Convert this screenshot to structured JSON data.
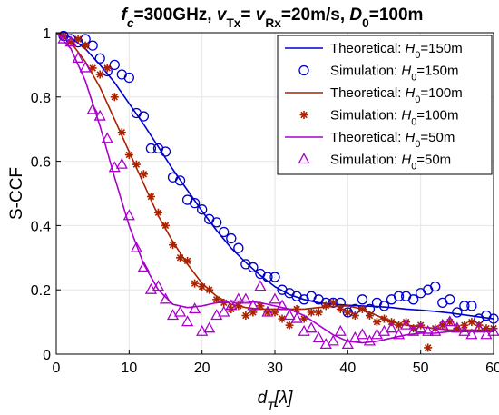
{
  "chart_data": {
    "type": "line",
    "title": {
      "segments": [
        {
          "t": "f",
          "italic": true
        },
        {
          "t": "c",
          "sub": true,
          "italic": true
        },
        {
          "t": "=300GHz,  "
        },
        {
          "t": "v",
          "italic": true
        },
        {
          "t": "Tx",
          "sub": true
        },
        {
          "t": "= "
        },
        {
          "t": "v",
          "italic": true
        },
        {
          "t": "Rx",
          "sub": true
        },
        {
          "t": "=20m/s,  "
        },
        {
          "t": "D",
          "italic": true
        },
        {
          "t": "0",
          "sub": true
        },
        {
          "t": "=100m"
        }
      ]
    },
    "xlabel": {
      "main": "d",
      "sub": "T",
      "suffix": "[λ]"
    },
    "ylabel": "S-CCF",
    "xlim": [
      0,
      60
    ],
    "ylim": [
      0,
      1
    ],
    "xticks": [
      "0",
      "10",
      "20",
      "30",
      "40",
      "50",
      "60"
    ],
    "yticks": [
      "0",
      "0.2",
      "0.4",
      "0.6",
      "0.8",
      "1"
    ],
    "grid": true,
    "legend_position": "top-right",
    "series": [
      {
        "name": "Theoretical:  H0=150m",
        "legend": {
          "prefix": "Theoretical:  ",
          "var": "H",
          "sub": "0",
          "suffix": "=150m"
        },
        "style": "line",
        "color": "#0000cc",
        "points": [
          [
            0,
            1.0
          ],
          [
            2,
            0.985
          ],
          [
            4,
            0.95
          ],
          [
            6,
            0.9
          ],
          [
            8,
            0.845
          ],
          [
            10,
            0.78
          ],
          [
            12,
            0.715
          ],
          [
            14,
            0.645
          ],
          [
            16,
            0.575
          ],
          [
            18,
            0.51
          ],
          [
            20,
            0.445
          ],
          [
            22,
            0.385
          ],
          [
            24,
            0.33
          ],
          [
            26,
            0.285
          ],
          [
            28,
            0.245
          ],
          [
            30,
            0.21
          ],
          [
            32,
            0.185
          ],
          [
            34,
            0.17
          ],
          [
            36,
            0.16
          ],
          [
            38,
            0.155
          ],
          [
            40,
            0.152
          ],
          [
            42,
            0.15
          ],
          [
            44,
            0.148
          ],
          [
            46,
            0.145
          ],
          [
            48,
            0.14
          ],
          [
            50,
            0.137
          ],
          [
            52,
            0.133
          ],
          [
            54,
            0.128
          ],
          [
            56,
            0.122
          ],
          [
            58,
            0.116
          ],
          [
            60,
            0.11
          ]
        ]
      },
      {
        "name": "Simulation:  H0=150m",
        "legend": {
          "prefix": "Simulation:  ",
          "var": "H",
          "sub": "0",
          "suffix": "=150m"
        },
        "style": "circle",
        "color": "#0000cc",
        "points": [
          [
            1,
            0.99
          ],
          [
            2,
            0.98
          ],
          [
            3,
            0.97
          ],
          [
            4,
            0.98
          ],
          [
            5,
            0.96
          ],
          [
            6,
            0.92
          ],
          [
            7,
            0.88
          ],
          [
            8,
            0.9
          ],
          [
            9,
            0.87
          ],
          [
            10,
            0.86
          ],
          [
            11,
            0.75
          ],
          [
            12,
            0.74
          ],
          [
            13,
            0.64
          ],
          [
            14,
            0.64
          ],
          [
            15,
            0.63
          ],
          [
            16,
            0.55
          ],
          [
            17,
            0.54
          ],
          [
            18,
            0.48
          ],
          [
            19,
            0.47
          ],
          [
            20,
            0.45
          ],
          [
            21,
            0.42
          ],
          [
            22,
            0.41
          ],
          [
            23,
            0.38
          ],
          [
            24,
            0.36
          ],
          [
            25,
            0.33
          ],
          [
            26,
            0.28
          ],
          [
            27,
            0.27
          ],
          [
            28,
            0.25
          ],
          [
            29,
            0.24
          ],
          [
            30,
            0.24
          ],
          [
            31,
            0.2
          ],
          [
            32,
            0.19
          ],
          [
            33,
            0.18
          ],
          [
            34,
            0.17
          ],
          [
            35,
            0.18
          ],
          [
            36,
            0.17
          ],
          [
            37,
            0.16
          ],
          [
            38,
            0.16
          ],
          [
            39,
            0.16
          ],
          [
            40,
            0.13
          ],
          [
            41,
            0.14
          ],
          [
            42,
            0.17
          ],
          [
            43,
            0.14
          ],
          [
            44,
            0.16
          ],
          [
            45,
            0.15
          ],
          [
            46,
            0.17
          ],
          [
            47,
            0.18
          ],
          [
            48,
            0.18
          ],
          [
            49,
            0.17
          ],
          [
            50,
            0.19
          ],
          [
            51,
            0.2
          ],
          [
            52,
            0.21
          ],
          [
            53,
            0.16
          ],
          [
            54,
            0.17
          ],
          [
            55,
            0.13
          ],
          [
            56,
            0.15
          ],
          [
            57,
            0.15
          ],
          [
            58,
            0.11
          ],
          [
            59,
            0.12
          ],
          [
            60,
            0.11
          ]
        ]
      },
      {
        "name": "Theoretical:  H0=100m",
        "legend": {
          "prefix": "Theoretical:  ",
          "var": "H",
          "sub": "0",
          "suffix": "=100m"
        },
        "style": "line",
        "color": "#aa2200",
        "points": [
          [
            0,
            1.0
          ],
          [
            2,
            0.97
          ],
          [
            4,
            0.91
          ],
          [
            6,
            0.83
          ],
          [
            8,
            0.73
          ],
          [
            10,
            0.63
          ],
          [
            12,
            0.53
          ],
          [
            14,
            0.43
          ],
          [
            16,
            0.35
          ],
          [
            18,
            0.28
          ],
          [
            20,
            0.22
          ],
          [
            22,
            0.18
          ],
          [
            24,
            0.155
          ],
          [
            26,
            0.145
          ],
          [
            28,
            0.14
          ],
          [
            30,
            0.14
          ],
          [
            32,
            0.14
          ],
          [
            34,
            0.14
          ],
          [
            36,
            0.145
          ],
          [
            38,
            0.148
          ],
          [
            40,
            0.15
          ],
          [
            42,
            0.14
          ],
          [
            44,
            0.12
          ],
          [
            46,
            0.1
          ],
          [
            48,
            0.09
          ],
          [
            50,
            0.085
          ],
          [
            52,
            0.08
          ],
          [
            54,
            0.075
          ],
          [
            56,
            0.075
          ],
          [
            58,
            0.075
          ],
          [
            60,
            0.075
          ]
        ]
      },
      {
        "name": "Simulation:  H0=100m",
        "legend": {
          "prefix": "Simulation:  ",
          "var": "H",
          "sub": "0",
          "suffix": "=100m"
        },
        "style": "star",
        "color": "#aa2200",
        "points": [
          [
            1,
            0.99
          ],
          [
            2,
            0.97
          ],
          [
            3,
            0.98
          ],
          [
            4,
            0.96
          ],
          [
            5,
            0.89
          ],
          [
            6,
            0.87
          ],
          [
            7,
            0.89
          ],
          [
            8,
            0.8
          ],
          [
            9,
            0.69
          ],
          [
            10,
            0.62
          ],
          [
            11,
            0.59
          ],
          [
            12,
            0.56
          ],
          [
            13,
            0.49
          ],
          [
            14,
            0.44
          ],
          [
            15,
            0.4
          ],
          [
            16,
            0.34
          ],
          [
            17,
            0.3
          ],
          [
            18,
            0.29
          ],
          [
            19,
            0.22
          ],
          [
            20,
            0.21
          ],
          [
            21,
            0.2
          ],
          [
            22,
            0.17
          ],
          [
            23,
            0.16
          ],
          [
            24,
            0.14
          ],
          [
            25,
            0.15
          ],
          [
            26,
            0.12
          ],
          [
            27,
            0.13
          ],
          [
            28,
            0.15
          ],
          [
            29,
            0.13
          ],
          [
            30,
            0.13
          ],
          [
            31,
            0.11
          ],
          [
            32,
            0.09
          ],
          [
            33,
            0.14
          ],
          [
            34,
            0.11
          ],
          [
            35,
            0.13
          ],
          [
            36,
            0.13
          ],
          [
            37,
            0.15
          ],
          [
            38,
            0.16
          ],
          [
            39,
            0.14
          ],
          [
            40,
            0.13
          ],
          [
            41,
            0.12
          ],
          [
            42,
            0.14
          ],
          [
            43,
            0.12
          ],
          [
            44,
            0.1
          ],
          [
            45,
            0.11
          ],
          [
            46,
            0.1
          ],
          [
            47,
            0.09
          ],
          [
            48,
            0.1
          ],
          [
            49,
            0.08
          ],
          [
            50,
            0.09
          ],
          [
            51,
            0.02
          ],
          [
            52,
            0.08
          ],
          [
            53,
            0.09
          ],
          [
            54,
            0.1
          ],
          [
            55,
            0.08
          ],
          [
            56,
            0.09
          ],
          [
            57,
            0.1
          ],
          [
            58,
            0.09
          ],
          [
            59,
            0.08
          ],
          [
            60,
            0.08
          ]
        ]
      },
      {
        "name": "Theoretical:  H0=50m",
        "legend": {
          "prefix": "Theoretical:  ",
          "var": "H",
          "sub": "0",
          "suffix": "=50m"
        },
        "style": "line",
        "color": "#aa00cc",
        "points": [
          [
            0,
            1.0
          ],
          [
            2,
            0.95
          ],
          [
            4,
            0.85
          ],
          [
            6,
            0.71
          ],
          [
            8,
            0.55
          ],
          [
            10,
            0.4
          ],
          [
            12,
            0.28
          ],
          [
            14,
            0.2
          ],
          [
            16,
            0.155
          ],
          [
            18,
            0.145
          ],
          [
            20,
            0.15
          ],
          [
            22,
            0.16
          ],
          [
            24,
            0.165
          ],
          [
            26,
            0.165
          ],
          [
            28,
            0.16
          ],
          [
            30,
            0.15
          ],
          [
            32,
            0.14
          ],
          [
            34,
            0.12
          ],
          [
            36,
            0.09
          ],
          [
            38,
            0.06
          ],
          [
            40,
            0.04
          ],
          [
            42,
            0.035
          ],
          [
            44,
            0.04
          ],
          [
            46,
            0.05
          ],
          [
            48,
            0.06
          ],
          [
            50,
            0.065
          ],
          [
            52,
            0.065
          ],
          [
            54,
            0.07
          ],
          [
            56,
            0.07
          ],
          [
            58,
            0.07
          ],
          [
            60,
            0.07
          ]
        ]
      },
      {
        "name": "Simulation:  H0=50m",
        "legend": {
          "prefix": "Simulation:  ",
          "var": "H",
          "sub": "0",
          "suffix": "=50m"
        },
        "style": "triangle",
        "color": "#aa00cc",
        "points": [
          [
            1,
            0.98
          ],
          [
            2,
            0.97
          ],
          [
            3,
            0.92
          ],
          [
            4,
            0.89
          ],
          [
            5,
            0.76
          ],
          [
            6,
            0.74
          ],
          [
            7,
            0.67
          ],
          [
            8,
            0.58
          ],
          [
            9,
            0.59
          ],
          [
            10,
            0.43
          ],
          [
            11,
            0.33
          ],
          [
            12,
            0.27
          ],
          [
            13,
            0.2
          ],
          [
            14,
            0.21
          ],
          [
            15,
            0.17
          ],
          [
            16,
            0.12
          ],
          [
            17,
            0.13
          ],
          [
            18,
            0.1
          ],
          [
            19,
            0.14
          ],
          [
            20,
            0.07
          ],
          [
            21,
            0.08
          ],
          [
            22,
            0.12
          ],
          [
            23,
            0.13
          ],
          [
            24,
            0.15
          ],
          [
            25,
            0.17
          ],
          [
            26,
            0.17
          ],
          [
            27,
            0.15
          ],
          [
            28,
            0.21
          ],
          [
            29,
            0.13
          ],
          [
            30,
            0.17
          ],
          [
            31,
            0.15
          ],
          [
            32,
            0.12
          ],
          [
            33,
            0.11
          ],
          [
            34,
            0.07
          ],
          [
            35,
            0.08
          ],
          [
            36,
            0.05
          ],
          [
            37,
            0.03
          ],
          [
            38,
            0.04
          ],
          [
            39,
            0.07
          ],
          [
            40,
            0.03
          ],
          [
            41,
            0.05
          ],
          [
            42,
            0.06
          ],
          [
            43,
            0.04
          ],
          [
            44,
            0.06
          ],
          [
            45,
            0.07
          ],
          [
            46,
            0.08
          ],
          [
            47,
            0.06
          ],
          [
            48,
            0.09
          ],
          [
            49,
            0.07
          ],
          [
            50,
            0.08
          ],
          [
            51,
            0.07
          ],
          [
            52,
            0.07
          ],
          [
            53,
            0.09
          ],
          [
            54,
            0.1
          ],
          [
            55,
            0.08
          ],
          [
            56,
            0.07
          ],
          [
            57,
            0.06
          ],
          [
            58,
            0.08
          ],
          [
            59,
            0.06
          ],
          [
            60,
            0.07
          ]
        ]
      }
    ]
  }
}
